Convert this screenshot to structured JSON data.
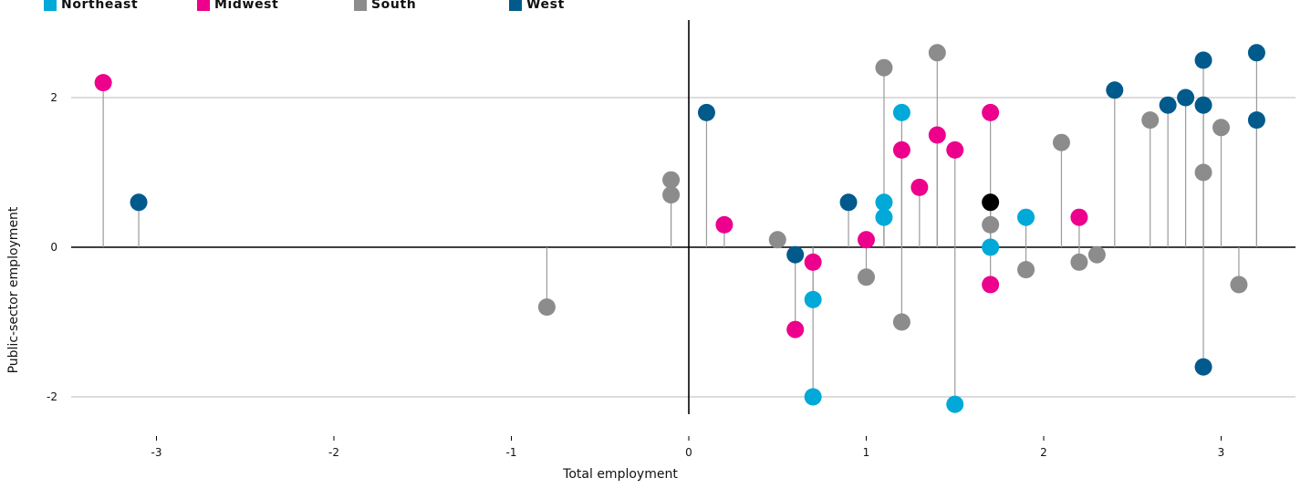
{
  "legend": [
    {
      "label": "Northeast",
      "color": "#00a9d8"
    },
    {
      "label": "Midwest",
      "color": "#ec008c"
    },
    {
      "label": "South",
      "color": "#8c8c8c"
    },
    {
      "label": "West",
      "color": "#005a8b"
    }
  ],
  "chart_data": {
    "type": "scatter",
    "xlabel": "Total employment",
    "ylabel": "Public-sector employment",
    "xlim": [
      -3.5,
      3.5
    ],
    "ylim": [
      -2.6,
      2.9
    ],
    "xticks": [
      -3,
      -2,
      -1,
      0,
      1,
      2,
      3
    ],
    "yticks": [
      -2,
      0,
      2
    ],
    "grid": "horizontal",
    "legend_position": "top-left",
    "stems_to_zero": true,
    "series": [
      {
        "name": "Northeast",
        "color": "#00a9d8",
        "points": [
          {
            "x": 1.2,
            "y": 1.8
          },
          {
            "x": 1.1,
            "y": 0.6
          },
          {
            "x": 1.1,
            "y": 0.4
          },
          {
            "x": 0.7,
            "y": -0.7
          },
          {
            "x": 0.7,
            "y": -2.0
          },
          {
            "x": 1.5,
            "y": -2.1
          },
          {
            "x": 1.7,
            "y": 0.0
          },
          {
            "x": 1.9,
            "y": 0.4
          }
        ]
      },
      {
        "name": "Midwest",
        "color": "#ec008c",
        "points": [
          {
            "x": -3.3,
            "y": 2.2
          },
          {
            "x": 0.2,
            "y": 0.3
          },
          {
            "x": 0.6,
            "y": -1.1
          },
          {
            "x": 0.7,
            "y": -0.2
          },
          {
            "x": 1.0,
            "y": 0.1
          },
          {
            "x": 1.2,
            "y": 1.3
          },
          {
            "x": 1.3,
            "y": 0.8
          },
          {
            "x": 1.4,
            "y": 1.5
          },
          {
            "x": 1.5,
            "y": 1.3
          },
          {
            "x": 1.7,
            "y": 1.8
          },
          {
            "x": 1.7,
            "y": -0.5
          },
          {
            "x": 2.2,
            "y": 0.4
          }
        ]
      },
      {
        "name": "South",
        "color": "#8c8c8c",
        "points": [
          {
            "x": -0.8,
            "y": -0.8
          },
          {
            "x": -0.1,
            "y": 0.9
          },
          {
            "x": -0.1,
            "y": 0.7
          },
          {
            "x": 0.5,
            "y": 0.1
          },
          {
            "x": 1.0,
            "y": -0.4
          },
          {
            "x": 1.1,
            "y": 2.4
          },
          {
            "x": 1.2,
            "y": -1.0
          },
          {
            "x": 1.4,
            "y": 2.6
          },
          {
            "x": 1.7,
            "y": 0.3
          },
          {
            "x": 1.9,
            "y": -0.3
          },
          {
            "x": 2.1,
            "y": 1.4
          },
          {
            "x": 2.2,
            "y": -0.2
          },
          {
            "x": 2.3,
            "y": -0.1
          },
          {
            "x": 2.6,
            "y": 1.7
          },
          {
            "x": 2.9,
            "y": 1.0
          },
          {
            "x": 3.0,
            "y": 1.6
          },
          {
            "x": 3.1,
            "y": -0.5
          }
        ]
      },
      {
        "name": "West",
        "color": "#005a8b",
        "points": [
          {
            "x": -3.1,
            "y": 0.6
          },
          {
            "x": 0.1,
            "y": 1.8
          },
          {
            "x": 0.6,
            "y": -0.1
          },
          {
            "x": 0.9,
            "y": 0.6
          },
          {
            "x": 2.4,
            "y": 2.1
          },
          {
            "x": 2.7,
            "y": 1.9
          },
          {
            "x": 2.8,
            "y": 2.0
          },
          {
            "x": 2.9,
            "y": 2.5
          },
          {
            "x": 2.9,
            "y": 1.9
          },
          {
            "x": 2.9,
            "y": -1.6
          },
          {
            "x": 3.2,
            "y": 2.6
          },
          {
            "x": 3.2,
            "y": 1.7
          }
        ]
      },
      {
        "color": "#000000",
        "points": [
          {
            "x": 1.7,
            "y": 0.6
          }
        ]
      }
    ]
  }
}
